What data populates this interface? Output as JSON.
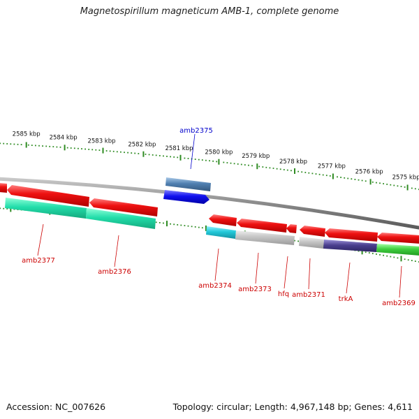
{
  "title": "Magnetospirillum magneticum AMB-1, complete genome",
  "footer": {
    "accession": "Accession: NC_007626",
    "summary": "Topology: circular; Length: 4,967,148 bp; Genes: 4,611"
  },
  "colors": {
    "backbone": "#8a8a8a",
    "ruler": "#2e8b22",
    "label_red": "#cc0000",
    "label_blue": "#0000cc",
    "red": "#ee1111",
    "teal": "#22ddaa",
    "cyan": "#22c8d8",
    "gray": "#b8b8b8",
    "navy": "#4a3f8f",
    "green": "#3fcf3f",
    "steel": "#4f7fb0",
    "blue": "#1010ee"
  },
  "scale": {
    "unit": "kbp",
    "ticks": [
      {
        "label": "2585 kbp"
      },
      {
        "label": "2584 kbp"
      },
      {
        "label": "2583 kbp"
      },
      {
        "label": "2582 kbp"
      },
      {
        "label": "2581 kbp"
      },
      {
        "label": "2580 kbp"
      },
      {
        "label": "2579 kbp"
      },
      {
        "label": "2578 kbp"
      },
      {
        "label": "2577 kbp"
      },
      {
        "label": "2576 kbp"
      },
      {
        "label": "2575 kbp"
      }
    ]
  },
  "genes": [
    {
      "name": "amb2375",
      "color": "blue"
    },
    {
      "name": "amb2377",
      "color": "teal"
    },
    {
      "name": "amb2376",
      "color": "teal"
    },
    {
      "name": "amb2374",
      "color": "cyan"
    },
    {
      "name": "amb2373",
      "color": "gray"
    },
    {
      "name": "hfq",
      "color": "gray"
    },
    {
      "name": "amb2371",
      "color": "gray"
    },
    {
      "name": "trkA",
      "color": "navy"
    },
    {
      "name": "amb2369",
      "color": "green"
    }
  ]
}
